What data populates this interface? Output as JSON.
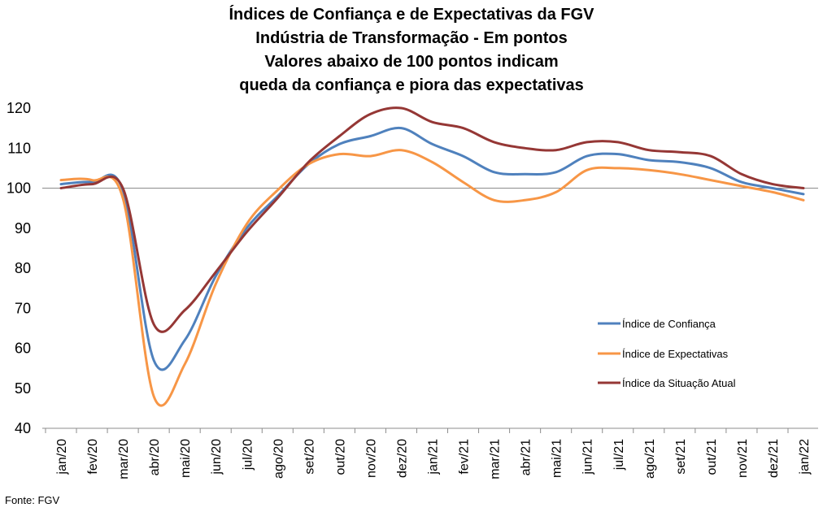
{
  "chart_data": {
    "type": "line",
    "title_lines": [
      "Índices de Confiança e de Expectativas da FGV",
      "Indústria de Transformação - Em pontos",
      "Valores abaixo de 100 pontos indicam",
      "queda da confiança e piora das expectativas"
    ],
    "categories": [
      "jan/20",
      "fev/20",
      "mar/20",
      "abr/20",
      "mai/20",
      "jun/20",
      "jul/20",
      "ago/20",
      "set/20",
      "out/20",
      "nov/20",
      "dez/20",
      "jan/21",
      "fev/21",
      "mar/21",
      "abr/21",
      "mai/21",
      "jun/21",
      "jul/21",
      "ago/21",
      "set/21",
      "out/21",
      "nov/21",
      "dez/21",
      "jan/22"
    ],
    "y_ticks": [
      "40",
      "50",
      "60",
      "70",
      "80",
      "90",
      "100",
      "110",
      "120"
    ],
    "ylim": [
      40,
      120
    ],
    "reference_line": 100,
    "legend_position": "right",
    "series": [
      {
        "name": "Índice de Confiança",
        "color": "#4F81BD",
        "values": [
          101.0,
          101.5,
          99.5,
          57.0,
          62.0,
          78.0,
          90.0,
          98.0,
          106.0,
          111.0,
          113.0,
          115.0,
          111.0,
          108.0,
          104.0,
          103.5,
          104.0,
          108.0,
          108.5,
          107.0,
          106.5,
          105.0,
          101.5,
          100.0,
          98.5
        ]
      },
      {
        "name": "Índice de Expectativas",
        "color": "#F79646",
        "values": [
          102.0,
          102.0,
          97.5,
          48.0,
          56.0,
          76.0,
          91.0,
          99.5,
          106.0,
          108.5,
          108.0,
          109.5,
          106.5,
          101.5,
          97.0,
          97.0,
          99.0,
          104.5,
          105.0,
          104.5,
          103.5,
          102.0,
          100.5,
          99.0,
          97.0
        ]
      },
      {
        "name": "Índice da Situação Atual",
        "color": "#953735",
        "values": [
          100.0,
          101.0,
          100.0,
          66.0,
          69.5,
          79.0,
          89.0,
          97.5,
          106.5,
          113.0,
          118.5,
          120.0,
          116.5,
          115.0,
          111.5,
          110.0,
          109.5,
          111.5,
          111.5,
          109.5,
          109.0,
          108.0,
          103.5,
          101.0,
          100.0
        ]
      }
    ],
    "source": "Fonte: FGV"
  }
}
